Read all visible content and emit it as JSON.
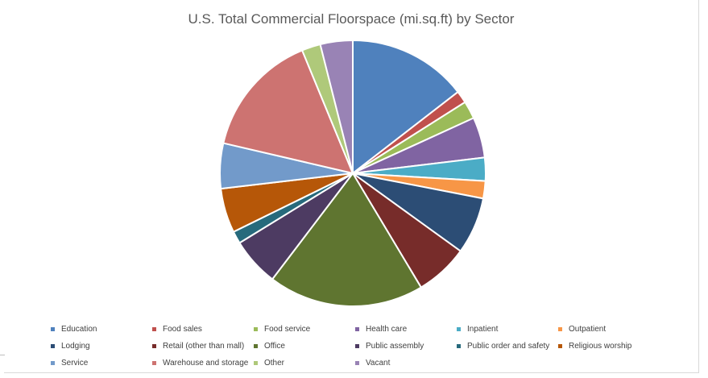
{
  "chart_data": {
    "type": "pie",
    "title": "U.S. Total Commercial Floorspace (mi.sq.ft) by Sector",
    "categories": [
      "Education",
      "Food sales",
      "Food service",
      "Health care",
      "Inpatient",
      "Outpatient",
      "Lodging",
      "Retail (other than mall)",
      "Office",
      "Public assembly",
      "Public order and safety",
      "Religious worship",
      "Service",
      "Warehouse and storage",
      "Other",
      "Vacant"
    ],
    "values": [
      12239,
      1255,
      1819,
      4155,
      2378,
      1780,
      5826,
      5439,
      15952,
      4961,
      1270,
      4557,
      4630,
      12752,
      1922,
      3320
    ],
    "colors": [
      "#4F81BD",
      "#C0504D",
      "#9BBB59",
      "#8064A2",
      "#4BACC6",
      "#F79646",
      "#2C4D75",
      "#772C2A",
      "#5F7530",
      "#4D3B62",
      "#276A7C",
      "#B65708",
      "#729ACA",
      "#CD7371",
      "#AFC97A",
      "#9983B5"
    ],
    "legend_position": "bottom",
    "start_angle_deg": 0,
    "direction": "clockwise"
  }
}
